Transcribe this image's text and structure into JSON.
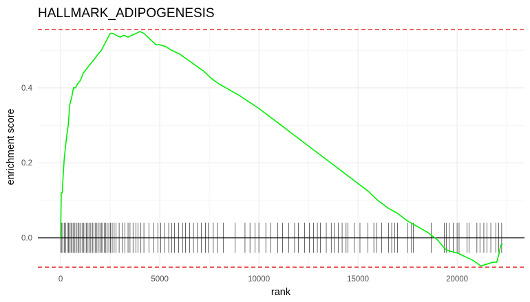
{
  "chart_data": {
    "type": "line",
    "title": "HALLMARK_ADIPOGENESIS",
    "xlabel": "rank",
    "ylabel": "enrichment score",
    "xlim": [
      -1150,
      23400
    ],
    "ylim": [
      -0.085,
      0.57
    ],
    "x_ticks": [
      0,
      5000,
      10000,
      15000,
      20000
    ],
    "x_tick_labels": [
      "0",
      "5000",
      "10000",
      "15000",
      "20000"
    ],
    "y_ticks": [
      0.0,
      0.2,
      0.4
    ],
    "y_tick_labels": [
      "0.0",
      "0.2",
      "0.4"
    ],
    "grid": true,
    "series": [
      {
        "name": "",
        "color": "#00ee00",
        "x": [
          0,
          30,
          80,
          130,
          180,
          230,
          300,
          380,
          460,
          560,
          650,
          750,
          850,
          1000,
          1150,
          1300,
          1450,
          1600,
          1750,
          1900,
          2050,
          2200,
          2350,
          2500,
          2650,
          2800,
          3000,
          3200,
          3400,
          3600,
          3800,
          4000,
          4200,
          4400,
          4600,
          4800,
          5000,
          5300,
          5600,
          6000,
          6400,
          6800,
          7200,
          7600,
          8000,
          9000,
          10000,
          11000,
          12000,
          13000,
          14000,
          15000,
          15500,
          16000,
          16500,
          17000,
          17500,
          18000,
          18500,
          19000,
          19400,
          19600,
          20000,
          20400,
          20800,
          21200,
          21500,
          21800,
          22000,
          22100,
          22200,
          22300
        ],
        "values": [
          0.0,
          0.12,
          0.12,
          0.17,
          0.21,
          0.235,
          0.27,
          0.3,
          0.355,
          0.375,
          0.4,
          0.4,
          0.41,
          0.42,
          0.44,
          0.45,
          0.46,
          0.47,
          0.48,
          0.49,
          0.5,
          0.515,
          0.53,
          0.545,
          0.545,
          0.54,
          0.535,
          0.54,
          0.535,
          0.54,
          0.545,
          0.55,
          0.545,
          0.535,
          0.525,
          0.515,
          0.515,
          0.51,
          0.5,
          0.49,
          0.475,
          0.46,
          0.445,
          0.425,
          0.41,
          0.38,
          0.345,
          0.305,
          0.265,
          0.225,
          0.185,
          0.145,
          0.125,
          0.1,
          0.08,
          0.065,
          0.045,
          0.03,
          0.015,
          -0.005,
          -0.03,
          -0.035,
          -0.04,
          -0.05,
          -0.06,
          -0.075,
          -0.07,
          -0.065,
          -0.065,
          -0.045,
          -0.02,
          -0.015
        ]
      }
    ],
    "hit_positions": [
      0,
      60,
      120,
      180,
      250,
      320,
      400,
      450,
      520,
      580,
      650,
      720,
      800,
      870,
      930,
      1000,
      1080,
      1150,
      1220,
      1300,
      1380,
      1450,
      1520,
      1600,
      1680,
      1760,
      1830,
      1900,
      1980,
      2050,
      2120,
      2200,
      2280,
      2350,
      2430,
      2520,
      2600,
      2700,
      2800,
      2950,
      3100,
      3250,
      3400,
      3500,
      3650,
      3800,
      3900,
      4050,
      4200,
      4450,
      4700,
      4900,
      5050,
      5250,
      5450,
      5600,
      5750,
      5950,
      6150,
      6300,
      6500,
      6700,
      6900,
      7100,
      7300,
      7450,
      7700,
      7900,
      8200,
      8800,
      9300,
      9550,
      9800,
      10000,
      10350,
      10600,
      10950,
      11200,
      11500,
      11800,
      12000,
      12300,
      12550,
      12750,
      12950,
      13100,
      13400,
      13650,
      13800,
      14000,
      14200,
      14400,
      14500,
      14800,
      15100,
      15500,
      15800,
      15950,
      16200,
      16550,
      16700,
      16850,
      17000,
      17500,
      17700,
      17800,
      18700,
      19350,
      19450,
      19600,
      19800,
      20000,
      20100,
      20500,
      20600,
      21000,
      21150,
      21350,
      21500,
      21700,
      21950,
      22100,
      22250
    ],
    "reference_lines": {
      "zero": 0.0,
      "max_es": 0.555,
      "min_es": -0.078,
      "line_color": "#000000",
      "dash_color": "#e31a1c",
      "hit_color": "#000000"
    }
  }
}
